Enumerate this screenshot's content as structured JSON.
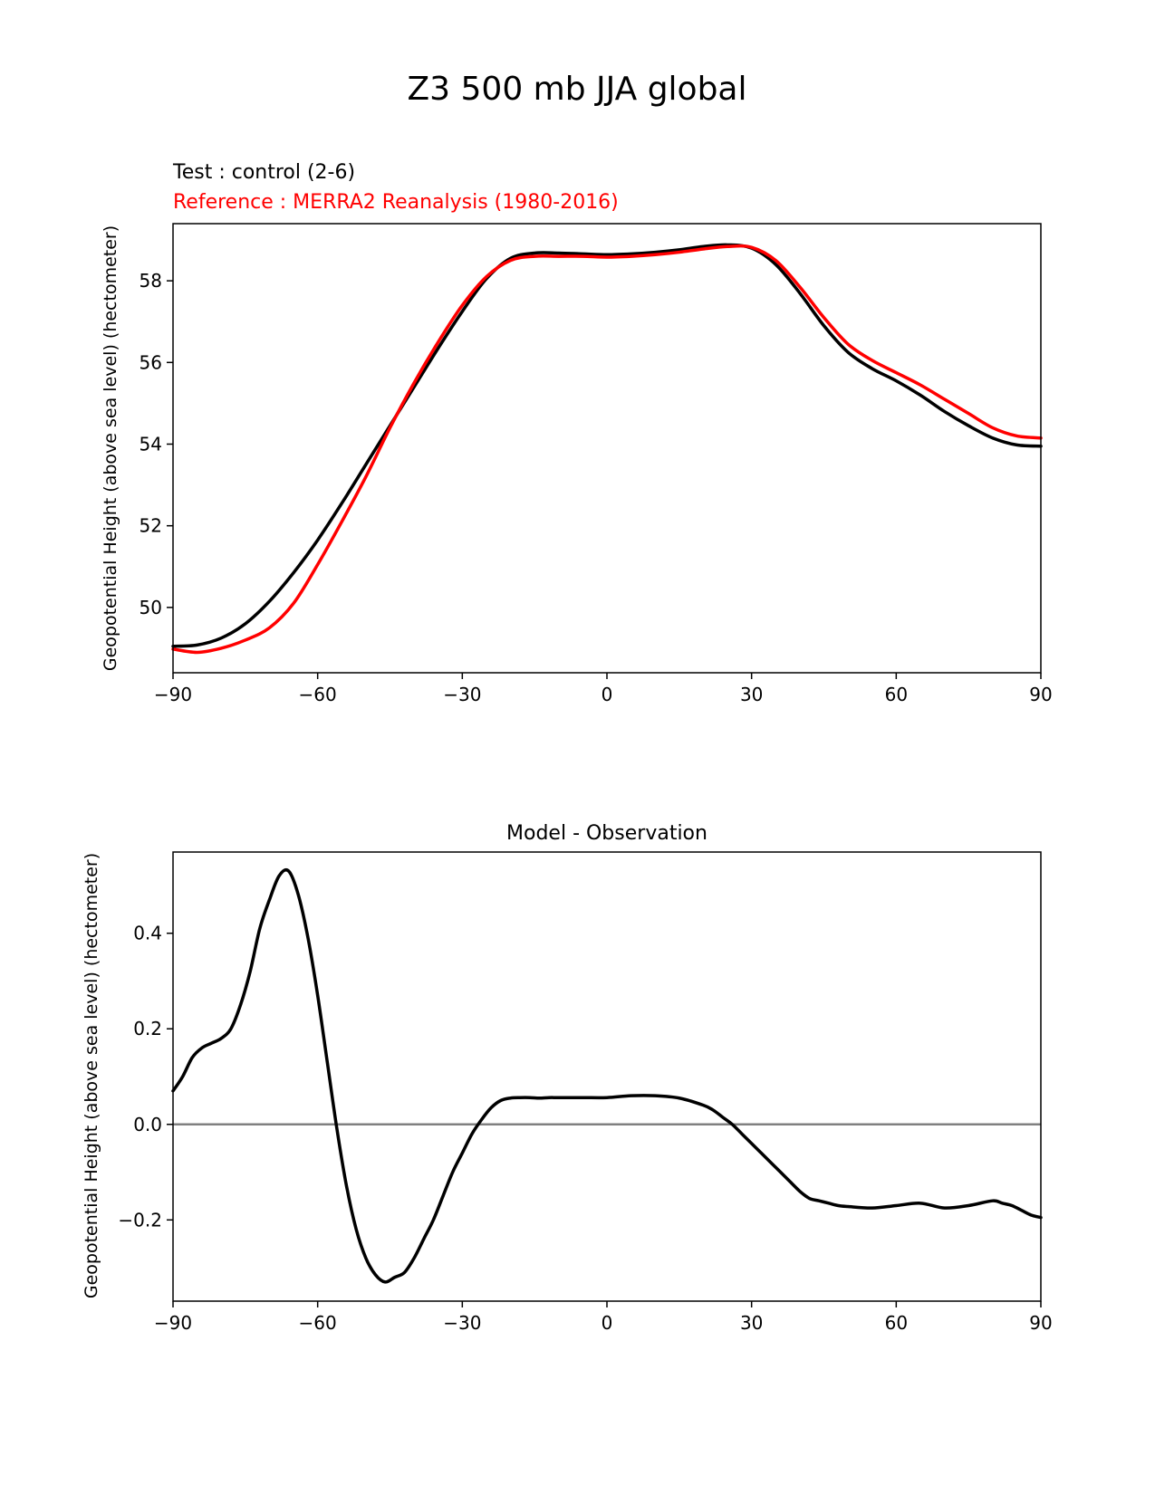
{
  "figure": {
    "title": "Z3 500 mb JJA global"
  },
  "chart_data": [
    {
      "type": "line",
      "title_lines": [
        {
          "text": "Test : control (2-6)",
          "color": "#000000"
        },
        {
          "text": "Reference : MERRA2 Reanalysis (1980-2016)",
          "color": "#ff0000"
        }
      ],
      "xlabel": "",
      "ylabel": "Geopotential Height (above sea level) (hectometer)",
      "xlim": [
        -90,
        90
      ],
      "ylim": [
        48.4,
        59.4
      ],
      "xticks": [
        -90,
        -60,
        -30,
        0,
        30,
        60,
        90
      ],
      "xtick_labels": [
        "−90",
        "−60",
        "−30",
        "0",
        "30",
        "60",
        "90"
      ],
      "yticks": [
        50,
        52,
        54,
        56,
        58
      ],
      "ytick_labels": [
        "50",
        "52",
        "54",
        "56",
        "58"
      ],
      "grid": false,
      "series": [
        {
          "name": "Test : control (2-6)",
          "color": "#000000",
          "x": [
            -90,
            -85,
            -80,
            -75,
            -70,
            -65,
            -60,
            -55,
            -50,
            -45,
            -40,
            -35,
            -30,
            -25,
            -20,
            -15,
            -10,
            -5,
            0,
            5,
            10,
            15,
            20,
            25,
            30,
            35,
            40,
            45,
            50,
            55,
            60,
            65,
            70,
            75,
            80,
            85,
            90
          ],
          "values": [
            49.05,
            49.08,
            49.25,
            49.6,
            50.15,
            50.85,
            51.65,
            52.55,
            53.5,
            54.45,
            55.4,
            56.35,
            57.25,
            58.05,
            58.55,
            58.68,
            58.68,
            58.66,
            58.64,
            58.66,
            58.7,
            58.76,
            58.84,
            58.88,
            58.8,
            58.4,
            57.7,
            56.9,
            56.25,
            55.85,
            55.55,
            55.2,
            54.8,
            54.45,
            54.15,
            53.98,
            53.95
          ]
        },
        {
          "name": "Reference : MERRA2 Reanalysis (1980-2016)",
          "color": "#ff0000",
          "x": [
            -90,
            -85,
            -80,
            -75,
            -70,
            -65,
            -60,
            -55,
            -50,
            -45,
            -40,
            -35,
            -30,
            -25,
            -20,
            -15,
            -10,
            -5,
            0,
            5,
            10,
            15,
            20,
            25,
            30,
            35,
            40,
            45,
            50,
            55,
            60,
            65,
            70,
            75,
            80,
            85,
            90
          ],
          "values": [
            48.98,
            48.9,
            49.0,
            49.2,
            49.5,
            50.1,
            51.05,
            52.1,
            53.2,
            54.4,
            55.5,
            56.5,
            57.4,
            58.1,
            58.5,
            58.6,
            58.6,
            58.6,
            58.58,
            58.6,
            58.64,
            58.7,
            58.78,
            58.84,
            58.82,
            58.5,
            57.85,
            57.1,
            56.45,
            56.05,
            55.75,
            55.45,
            55.1,
            54.75,
            54.4,
            54.2,
            54.15
          ]
        }
      ]
    },
    {
      "type": "line",
      "title": "Model - Observation",
      "xlabel": "",
      "ylabel": "Geopotential Height (above sea level) (hectometer)",
      "xlim": [
        -90,
        90
      ],
      "ylim": [
        -0.37,
        0.57
      ],
      "xticks": [
        -90,
        -60,
        -30,
        0,
        30,
        60,
        90
      ],
      "xtick_labels": [
        "−90",
        "−60",
        "−30",
        "0",
        "30",
        "60",
        "90"
      ],
      "yticks": [
        -0.2,
        0.0,
        0.2,
        0.4
      ],
      "ytick_labels": [
        "−0.2",
        "0.0",
        "0.2",
        "0.4"
      ],
      "grid": false,
      "zero_line": {
        "value": 0.0,
        "color": "#808080"
      },
      "series": [
        {
          "name": "Model - Observation",
          "color": "#000000",
          "x": [
            -90,
            -88,
            -86,
            -84,
            -82,
            -80,
            -78,
            -76,
            -74,
            -72,
            -70,
            -68,
            -66,
            -64,
            -62,
            -60,
            -58,
            -56,
            -54,
            -52,
            -50,
            -48,
            -46,
            -44,
            -42,
            -40,
            -38,
            -36,
            -34,
            -32,
            -30,
            -28,
            -26,
            -24,
            -22,
            -20,
            -18,
            -16,
            -14,
            -12,
            -10,
            -5,
            0,
            5,
            10,
            15,
            20,
            22,
            24,
            26,
            28,
            30,
            32,
            34,
            36,
            38,
            40,
            42,
            44,
            46,
            48,
            50,
            55,
            60,
            65,
            70,
            75,
            80,
            82,
            84,
            86,
            88,
            90
          ],
          "values": [
            0.07,
            0.1,
            0.14,
            0.16,
            0.17,
            0.18,
            0.2,
            0.25,
            0.32,
            0.41,
            0.47,
            0.52,
            0.53,
            0.48,
            0.39,
            0.27,
            0.13,
            -0.01,
            -0.13,
            -0.22,
            -0.28,
            -0.315,
            -0.33,
            -0.32,
            -0.31,
            -0.28,
            -0.24,
            -0.2,
            -0.15,
            -0.1,
            -0.06,
            -0.02,
            0.01,
            0.035,
            0.05,
            0.055,
            0.056,
            0.056,
            0.055,
            0.056,
            0.056,
            0.056,
            0.056,
            0.06,
            0.06,
            0.055,
            0.04,
            0.03,
            0.015,
            0.0,
            -0.02,
            -0.04,
            -0.06,
            -0.08,
            -0.1,
            -0.12,
            -0.14,
            -0.155,
            -0.16,
            -0.165,
            -0.17,
            -0.172,
            -0.175,
            -0.17,
            -0.165,
            -0.175,
            -0.17,
            -0.16,
            -0.165,
            -0.17,
            -0.18,
            -0.19,
            -0.195
          ]
        }
      ]
    }
  ]
}
